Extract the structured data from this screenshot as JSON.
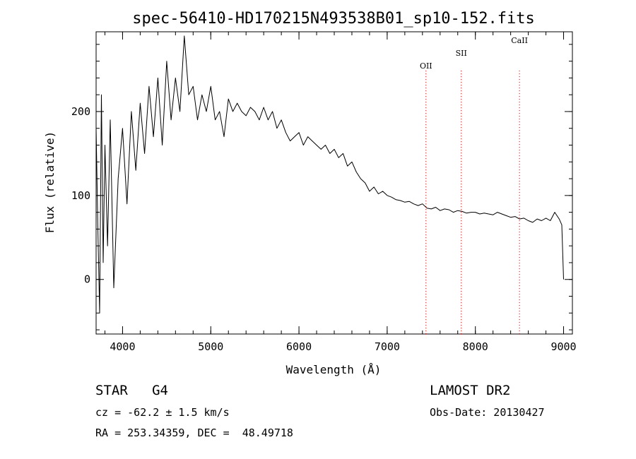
{
  "chart_data": {
    "type": "line",
    "title": "spec-56410-HD170215N493538B01_sp10-152.fits",
    "xlabel": "Wavelength (Å)",
    "ylabel": "Flux (relative)",
    "xlim": [
      3700,
      9100
    ],
    "ylim": [
      -65,
      295
    ],
    "x_ticks": [
      4000,
      5000,
      6000,
      7000,
      8000,
      9000
    ],
    "y_ticks": [
      0,
      100,
      200
    ],
    "line_color": "#000000",
    "marker_color": "#cc0000",
    "spectral_lines": [
      {
        "label": "OII",
        "wavelength": 7440
      },
      {
        "label": "SII",
        "wavelength": 7840
      },
      {
        "label": "CaII",
        "wavelength": 8500
      }
    ],
    "series": [
      {
        "x": [
          3700,
          3720,
          3740,
          3760,
          3780,
          3800,
          3830,
          3860,
          3900,
          3950,
          4000,
          4050,
          4100,
          4150,
          4200,
          4250,
          4300,
          4350,
          4400,
          4450,
          4500,
          4550,
          4600,
          4650,
          4700,
          4750,
          4800,
          4850,
          4900,
          4950,
          5000,
          5050,
          5100,
          5150,
          5200,
          5250,
          5300,
          5350,
          5400,
          5450,
          5500,
          5550,
          5600,
          5650,
          5700,
          5750,
          5800,
          5850,
          5900,
          5950,
          6000,
          6050,
          6100,
          6150,
          6200,
          6250,
          6300,
          6350,
          6400,
          6450,
          6500,
          6550,
          6600,
          6650,
          6700,
          6750,
          6800,
          6850,
          6900,
          6950,
          7000,
          7050,
          7100,
          7150,
          7200,
          7250,
          7300,
          7350,
          7400,
          7450,
          7500,
          7550,
          7600,
          7650,
          7700,
          7750,
          7800,
          7850,
          7900,
          7950,
          8000,
          8050,
          8100,
          8150,
          8200,
          8250,
          8300,
          8350,
          8400,
          8450,
          8500,
          8550,
          8600,
          8650,
          8700,
          8750,
          8800,
          8850,
          8900,
          8950,
          8980,
          9000
        ],
        "y": [
          180,
          60,
          -40,
          220,
          20,
          160,
          40,
          190,
          -10,
          120,
          180,
          90,
          200,
          130,
          210,
          150,
          230,
          170,
          240,
          160,
          260,
          190,
          240,
          200,
          290,
          220,
          230,
          190,
          220,
          200,
          230,
          190,
          200,
          170,
          215,
          200,
          210,
          200,
          195,
          205,
          200,
          190,
          205,
          190,
          200,
          180,
          190,
          175,
          165,
          170,
          175,
          160,
          170,
          165,
          160,
          155,
          160,
          150,
          155,
          145,
          150,
          135,
          140,
          128,
          120,
          115,
          105,
          110,
          102,
          105,
          100,
          98,
          95,
          94,
          92,
          93,
          90,
          88,
          90,
          85,
          84,
          86,
          82,
          84,
          83,
          80,
          82,
          81,
          79,
          80,
          80,
          78,
          79,
          78,
          77,
          80,
          78,
          76,
          74,
          75,
          72,
          73,
          70,
          68,
          72,
          70,
          73,
          70,
          80,
          72,
          65,
          0
        ]
      }
    ]
  },
  "footer": {
    "object_class": "STAR",
    "subclass": "G4",
    "survey": "LAMOST DR2",
    "cz": "cz = -62.2 ± 1.5 km/s",
    "obs_date": "Obs-Date: 20130427",
    "coords": "RA = 253.34359, DEC =  48.49718"
  }
}
